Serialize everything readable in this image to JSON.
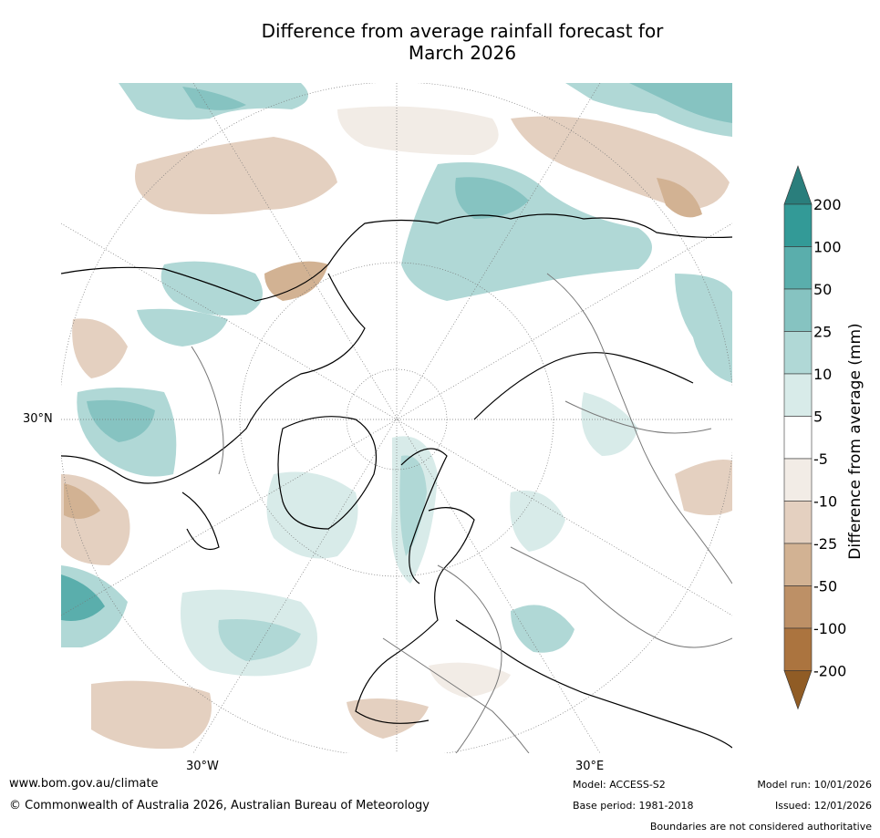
{
  "title_line1": "Difference from average rainfall forecast for",
  "title_line2": "March 2026",
  "axis_labels": {
    "lat_30n": "30°N",
    "lon_30w": "30°W",
    "lon_30e": "30°E"
  },
  "colorbar": {
    "title": "Difference from average (mm)",
    "ticks": [
      "200",
      "100",
      "50",
      "25",
      "10",
      "5",
      "-5",
      "-10",
      "-25",
      "-50",
      "-100",
      "-200"
    ],
    "colors": [
      "#2a7e7c",
      "#339a97",
      "#5aaeac",
      "#86c3c1",
      "#b0d8d6",
      "#d8ebe9",
      "#ffffff",
      "#f2ece6",
      "#e4d0c0",
      "#d2b293",
      "#bd9066",
      "#ab743f",
      "#905c25"
    ]
  },
  "footer": {
    "website": "www.bom.gov.au/climate",
    "copyright": "© Commonwealth of Australia 2026, Australian Bureau of Meteorology",
    "model": "Model: ACCESS-S2",
    "base_period": "Base period: 1981-2018",
    "model_run": "Model run: 10/01/2026",
    "issued": "Issued: 12/01/2026",
    "disclaimer": "Boundaries are not considered authoritative"
  }
}
